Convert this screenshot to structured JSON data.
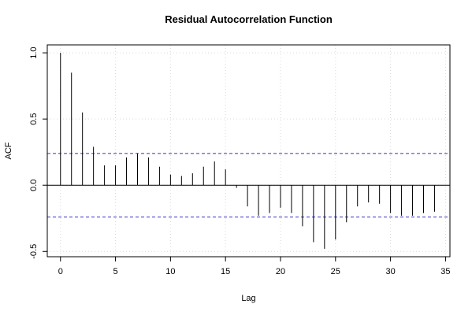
{
  "chart_data": {
    "type": "bar",
    "title": "Residual Autocorrelation Function",
    "xlabel": "Lag",
    "ylabel": "ACF",
    "xlim": [
      -1.2,
      35.4
    ],
    "ylim": [
      -0.54,
      1.06
    ],
    "x_ticks": [
      "0",
      "5",
      "10",
      "15",
      "20",
      "25",
      "30",
      "35"
    ],
    "y_ticks": [
      "-0.5",
      "0.0",
      "0.5",
      "1.0"
    ],
    "grid": true,
    "confidence_bound": 0.24,
    "lags": [
      0,
      1,
      2,
      3,
      4,
      5,
      6,
      7,
      8,
      9,
      10,
      11,
      12,
      13,
      14,
      15,
      16,
      17,
      18,
      19,
      20,
      21,
      22,
      23,
      24,
      25,
      26,
      27,
      28,
      29,
      30,
      31,
      32,
      33,
      34
    ],
    "values": [
      1.0,
      0.85,
      0.55,
      0.29,
      0.15,
      0.15,
      0.21,
      0.24,
      0.21,
      0.14,
      0.08,
      0.07,
      0.09,
      0.14,
      0.18,
      0.12,
      -0.02,
      -0.16,
      -0.23,
      -0.21,
      -0.17,
      -0.21,
      -0.31,
      -0.43,
      -0.48,
      -0.41,
      -0.28,
      -0.16,
      -0.13,
      -0.14,
      -0.21,
      -0.23,
      -0.23,
      -0.21,
      -0.2
    ],
    "colors": {
      "bars": "#000000",
      "bounds": "#3333cc",
      "grid": "#d9d9d9",
      "frame": "#000000"
    }
  }
}
